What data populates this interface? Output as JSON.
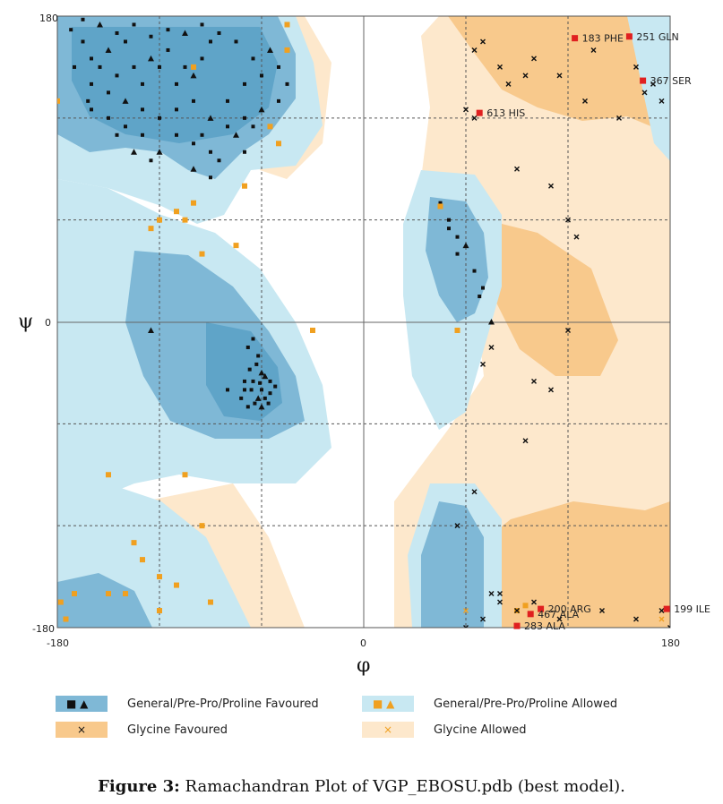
{
  "chart_data": {
    "type": "scatter",
    "title": "",
    "xlabel": "φ",
    "ylabel": "ψ",
    "xlim": [
      -180,
      180
    ],
    "ylim": [
      -180,
      180
    ],
    "x_ticks": [
      "-180",
      "0",
      "180"
    ],
    "y_ticks": [
      "180",
      "0",
      "-180"
    ],
    "grid_lines": {
      "phi": [
        -120,
        -60,
        60,
        120
      ],
      "psi": [
        120,
        60,
        -60,
        -120
      ]
    },
    "colors": {
      "general_favoured": "#7fb8d6",
      "general_allowed": "#c8e8f2",
      "glycine_favoured": "#f8c98c",
      "glycine_allowed": "#fde8cc",
      "outlier": "#e02020",
      "allowed_marker": "#f0a020",
      "point": "#111111"
    },
    "series": [
      {
        "name": "General/Pre-Pro/Proline Favoured",
        "marker": "square-triangle",
        "points": [
          [
            -172,
            172
          ],
          [
            -165,
            165
          ],
          [
            -160,
            155
          ],
          [
            -155,
            150
          ],
          [
            -150,
            160
          ],
          [
            -145,
            145
          ],
          [
            -140,
            165
          ],
          [
            -135,
            150
          ],
          [
            -130,
            140
          ],
          [
            -125,
            155
          ],
          [
            -120,
            150
          ],
          [
            -115,
            160
          ],
          [
            -110,
            140
          ],
          [
            -105,
            150
          ],
          [
            -100,
            145
          ],
          [
            -95,
            155
          ],
          [
            -90,
            165
          ],
          [
            -160,
            140
          ],
          [
            -150,
            135
          ],
          [
            -140,
            130
          ],
          [
            -130,
            125
          ],
          [
            -120,
            120
          ],
          [
            -110,
            125
          ],
          [
            -100,
            130
          ],
          [
            -90,
            120
          ],
          [
            -80,
            130
          ],
          [
            -70,
            140
          ],
          [
            -60,
            145
          ],
          [
            -50,
            150
          ],
          [
            -55,
            160
          ],
          [
            -65,
            155
          ],
          [
            -75,
            165
          ],
          [
            -85,
            170
          ],
          [
            -95,
            175
          ],
          [
            -105,
            170
          ],
          [
            -115,
            172
          ],
          [
            -125,
            168
          ],
          [
            -135,
            175
          ],
          [
            -145,
            170
          ],
          [
            -155,
            175
          ],
          [
            -165,
            178
          ],
          [
            -110,
            110
          ],
          [
            -100,
            105
          ],
          [
            -90,
            100
          ],
          [
            -120,
            100
          ],
          [
            -130,
            110
          ],
          [
            -140,
            115
          ],
          [
            -80,
            115
          ],
          [
            -70,
            120
          ],
          [
            -60,
            125
          ],
          [
            -50,
            130
          ],
          [
            -45,
            140
          ],
          [
            -150,
            120
          ],
          [
            -145,
            110
          ],
          [
            -135,
            100
          ],
          [
            -125,
            95
          ],
          [
            -160,
            125
          ],
          [
            -170,
            150
          ],
          [
            -162,
            130
          ],
          [
            -100,
            90
          ],
          [
            -90,
            85
          ],
          [
            -85,
            95
          ],
          [
            -95,
            110
          ],
          [
            -70,
            100
          ],
          [
            -75,
            110
          ],
          [
            -65,
            115
          ],
          [
            -65,
            -10
          ],
          [
            -68,
            -15
          ],
          [
            -62,
            -20
          ],
          [
            -60,
            -30
          ],
          [
            -65,
            -35
          ],
          [
            -60,
            -40
          ],
          [
            -58,
            -45
          ],
          [
            -55,
            -42
          ],
          [
            -62,
            -45
          ],
          [
            -66,
            -40
          ],
          [
            -70,
            -35
          ],
          [
            -72,
            -45
          ],
          [
            -68,
            -50
          ],
          [
            -60,
            -50
          ],
          [
            -55,
            -35
          ],
          [
            -52,
            -38
          ],
          [
            -63,
            -25
          ],
          [
            -67,
            -28
          ],
          [
            -58,
            -32
          ],
          [
            -64,
            -48
          ],
          [
            -70,
            -40
          ],
          [
            -56,
            -48
          ],
          [
            -61,
            -36
          ],
          [
            -125,
            -5
          ],
          [
            -80,
            -40
          ],
          [
            45,
            70
          ],
          [
            50,
            60
          ],
          [
            55,
            50
          ],
          [
            60,
            45
          ],
          [
            55,
            40
          ],
          [
            65,
            30
          ],
          [
            70,
            20
          ],
          [
            68,
            15
          ],
          [
            75,
            0
          ],
          [
            50,
            55
          ]
        ]
      },
      {
        "name": "General/Pre-Pro/Proline Allowed",
        "marker": "square",
        "points": [
          [
            -180,
            130
          ],
          [
            -100,
            150
          ],
          [
            -45,
            175
          ],
          [
            -45,
            160
          ],
          [
            -50,
            105
          ],
          [
            -55,
            115
          ],
          [
            -70,
            80
          ],
          [
            -75,
            45
          ],
          [
            -110,
            65
          ],
          [
            -105,
            60
          ],
          [
            -100,
            70
          ],
          [
            -120,
            60
          ],
          [
            -125,
            55
          ],
          [
            -95,
            40
          ],
          [
            -150,
            -90
          ],
          [
            -105,
            -90
          ],
          [
            -95,
            -120
          ],
          [
            -135,
            -130
          ],
          [
            -130,
            -140
          ],
          [
            -120,
            -150
          ],
          [
            -110,
            -155
          ],
          [
            -140,
            -160
          ],
          [
            -150,
            -160
          ],
          [
            -170,
            -160
          ],
          [
            -178,
            -165
          ],
          [
            -175,
            -175
          ],
          [
            -90,
            -165
          ],
          [
            -120,
            -170
          ],
          [
            90,
            -170
          ],
          [
            95,
            -167
          ],
          [
            -30,
            -5
          ],
          [
            55,
            -5
          ],
          [
            45,
            68
          ]
        ]
      },
      {
        "name": "Glycine Favoured",
        "marker": "x",
        "points": [
          [
            65,
            160
          ],
          [
            70,
            165
          ],
          [
            80,
            150
          ],
          [
            85,
            140
          ],
          [
            95,
            145
          ],
          [
            100,
            155
          ],
          [
            115,
            145
          ],
          [
            130,
            130
          ],
          [
            135,
            160
          ],
          [
            150,
            120
          ],
          [
            160,
            150
          ],
          [
            165,
            135
          ],
          [
            170,
            140
          ],
          [
            175,
            130
          ],
          [
            60,
            125
          ],
          [
            65,
            120
          ],
          [
            90,
            90
          ],
          [
            110,
            80
          ],
          [
            120,
            60
          ],
          [
            125,
            50
          ],
          [
            180,
            -180
          ],
          [
            160,
            -175
          ],
          [
            140,
            -170
          ],
          [
            115,
            -175
          ],
          [
            100,
            -165
          ],
          [
            90,
            -170
          ],
          [
            80,
            -165
          ],
          [
            75,
            -160
          ],
          [
            70,
            -175
          ],
          [
            60,
            -180
          ],
          [
            55,
            -120
          ],
          [
            65,
            -100
          ],
          [
            95,
            -70
          ],
          [
            100,
            -35
          ],
          [
            110,
            -40
          ],
          [
            120,
            -5
          ],
          [
            70,
            -25
          ],
          [
            75,
            -15
          ],
          [
            80,
            -160
          ],
          [
            175,
            -170
          ]
        ]
      },
      {
        "name": "Glycine Allowed",
        "marker": "x-orange",
        "points": [
          [
            60,
            -170
          ],
          [
            175,
            -175
          ]
        ]
      }
    ],
    "labeled_outliers": [
      {
        "label": "183 PHE",
        "phi": 124,
        "psi": 167
      },
      {
        "label": "251 GLN",
        "phi": 156,
        "psi": 168
      },
      {
        "label": "367 SER",
        "phi": 164,
        "psi": 142
      },
      {
        "label": "613 HIS",
        "phi": 68,
        "psi": 123
      },
      {
        "label": "200 ARG",
        "phi": 104,
        "psi": -169
      },
      {
        "label": "467 ALA",
        "phi": 98,
        "psi": -172
      },
      {
        "label": "283 ALA",
        "phi": 90,
        "psi": -179
      },
      {
        "label": "199 ILE",
        "phi": 178,
        "psi": -169
      }
    ]
  },
  "legend": [
    {
      "label": "General/Pre-Pro/Proline Favoured",
      "swatch": "#7fb8d6",
      "symbols": "■ ▲",
      "symbol_color": "#111111"
    },
    {
      "label": "General/Pre-Pro/Proline Allowed",
      "swatch": "#c8e8f2",
      "symbols": "■ ▲",
      "symbol_color": "#f0a020"
    },
    {
      "label": "Glycine Favoured",
      "swatch": "#f8c98c",
      "symbols": "×",
      "symbol_color": "#111111"
    },
    {
      "label": "Glycine Allowed",
      "swatch": "#fde8cc",
      "symbols": "×",
      "symbol_color": "#f0a020"
    }
  ],
  "caption": {
    "prefix": "Figure 3:",
    "text": " Ramachandran Plot of VGP_EBOSU.pdb (best model)."
  }
}
